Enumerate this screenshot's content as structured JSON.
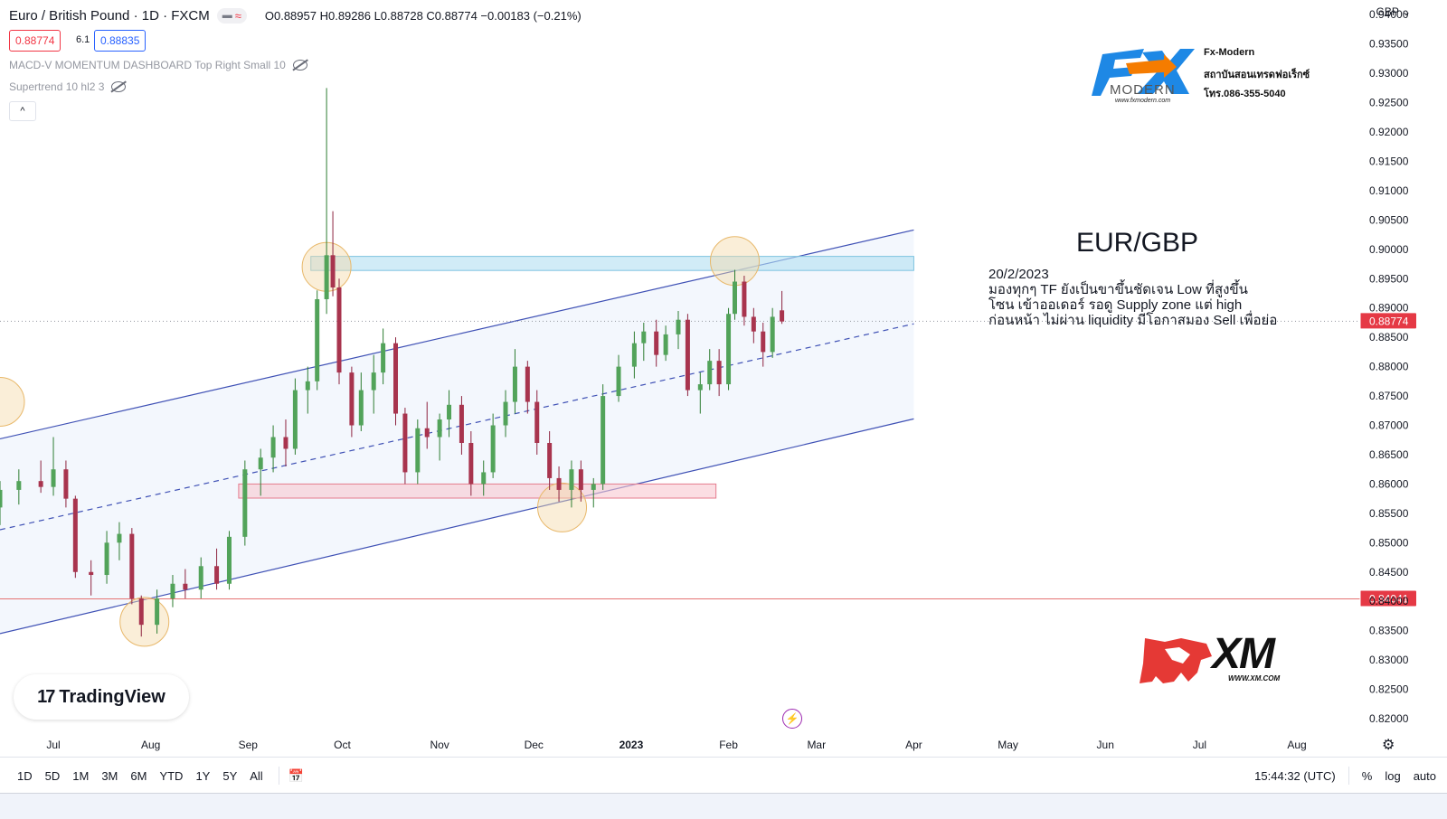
{
  "header": {
    "symbol": "Euro / British Pound · 1D · FXCM",
    "pill_wave": "≈",
    "ohlc": "O0.88957 H0.89286 L0.88728 C0.88774 −0.00183 (−0.21%)",
    "bid": "0.88774",
    "spread": "6.1",
    "ask": "0.88835",
    "collapse": "^"
  },
  "indicators": [
    {
      "label": "MACD-V MOMENTUM DASHBOARD Top Right Small 10"
    },
    {
      "label": "Supertrend 10 hl2 3"
    }
  ],
  "currency": "GBP ⌄",
  "annotation": {
    "title": "EUR/GBP",
    "lines": [
      "20/2/2023",
      "มองทุกๆ TF ยังเป็นขาขึ้นชัดเจน Low ที่สูงขึ้น",
      "โซน เข้าออเดอร์ รอดู Supply zone แต่ high",
      "ก่อนหน้า ไม่ผ่าน liquidity มีโอกาสมอง Sell เพื่อย่อ"
    ]
  },
  "logos": {
    "fx_name": "Fx-Modern",
    "fx_line1": "สถาบันสอนเทรดฟอเร็กซ์",
    "fx_line2": "โทร.086-355-5040",
    "fx_site": "www.fxmodern.com",
    "fx_word": "MODERN",
    "xm_text": "XM",
    "xm_site": "WWW.XM.COM",
    "tradingview": "TradingView",
    "tv_mark": "17"
  },
  "bottombar": {
    "ranges": [
      "1D",
      "5D",
      "1M",
      "3M",
      "6M",
      "YTD",
      "1Y",
      "5Y",
      "All"
    ],
    "time": "15:44:32 (UTC)",
    "percent": "%",
    "log": "log",
    "auto": "auto"
  },
  "colors": {
    "up": "#26a69a",
    "up_body": "#52a35a",
    "down": "#c2185b",
    "down_body": "#a8344e",
    "channel": "#3f51b5",
    "supply": "#b3e0f2",
    "demand": "#f8c8d0",
    "circle": "#f5d9a8",
    "price_tag": "#e53945"
  },
  "chart_data": {
    "type": "candlestick",
    "y_axis": {
      "ticks": [
        0.94,
        0.935,
        0.93,
        0.925,
        0.92,
        0.915,
        0.91,
        0.905,
        0.9,
        0.895,
        0.89,
        0.885,
        0.88,
        0.875,
        0.87,
        0.865,
        0.86,
        0.855,
        0.85,
        0.845,
        0.84,
        0.835,
        0.83,
        0.825,
        0.82
      ],
      "tick_labels": [
        "0.94000",
        "0.93500",
        "0.93000",
        "0.92500",
        "0.92000",
        "0.91500",
        "0.91000",
        "0.90500",
        "0.90000",
        "0.89500",
        "0.89000",
        "0.88500",
        "0.88000",
        "0.87500",
        "0.87000",
        "0.86500",
        "0.86000",
        "0.85500",
        "0.85000",
        "0.84500",
        "0.84000",
        "0.83500",
        "0.83000",
        "0.82500",
        "0.82000"
      ],
      "ylim": [
        0.818,
        0.9425
      ]
    },
    "x_axis": {
      "labels": [
        "Jul",
        "Aug",
        "Sep",
        "Oct",
        "Nov",
        "Dec",
        "2023",
        "Feb",
        "Mar",
        "Apr",
        "May",
        "Jun",
        "Jul",
        "Aug"
      ],
      "label_dates": [
        "2022-07-01",
        "2022-08-01",
        "2022-09-01",
        "2022-10-01",
        "2022-11-01",
        "2022-12-01",
        "2023-01-01",
        "2023-02-01",
        "2023-03-01",
        "2023-04-01",
        "2023-05-01",
        "2023-06-01",
        "2023-07-01",
        "2023-08-01"
      ],
      "bold": [
        "2023"
      ],
      "date_range": [
        "2022-06-14",
        "2023-08-20"
      ]
    },
    "price_levels": [
      {
        "price": 0.88774,
        "label": "0.88774",
        "style": "dotted"
      },
      {
        "price": 0.84041,
        "label": "0.84041",
        "style": "solid"
      }
    ],
    "zones": [
      {
        "kind": "supply",
        "from": "2022-09-21",
        "to": "2023-04-01",
        "low": 0.8964,
        "high": 0.8988
      },
      {
        "kind": "demand",
        "from": "2022-08-29",
        "to": "2023-01-28",
        "low": 0.8576,
        "high": 0.86
      }
    ],
    "channel": {
      "upper": {
        "from": [
          "2022-06-14",
          0.8677
        ],
        "to": [
          "2023-04-01",
          0.9033
        ]
      },
      "mid": {
        "from": [
          "2022-06-14",
          0.8522
        ],
        "to": [
          "2023-04-01",
          0.8873
        ]
      },
      "lower": {
        "from": [
          "2022-06-14",
          0.8345
        ],
        "to": [
          "2023-04-01",
          0.8711
        ]
      }
    },
    "highlights": [
      {
        "date": "2022-07-30",
        "price": 0.8365
      },
      {
        "date": "2022-09-26",
        "price": 0.897
      },
      {
        "date": "2022-12-10",
        "price": 0.856
      },
      {
        "date": "2023-02-03",
        "price": 0.898
      },
      {
        "date": "2022-06-14",
        "price": 0.874
      }
    ],
    "candles": [
      {
        "t": "2022-06-14",
        "o": 0.856,
        "h": 0.8605,
        "l": 0.853,
        "c": 0.859
      },
      {
        "t": "2022-06-20",
        "o": 0.859,
        "h": 0.8625,
        "l": 0.8565,
        "c": 0.8605
      },
      {
        "t": "2022-06-27",
        "o": 0.8605,
        "h": 0.864,
        "l": 0.8585,
        "c": 0.8595
      },
      {
        "t": "2022-07-01",
        "o": 0.8595,
        "h": 0.868,
        "l": 0.858,
        "c": 0.8625
      },
      {
        "t": "2022-07-05",
        "o": 0.8625,
        "h": 0.864,
        "l": 0.856,
        "c": 0.8575
      },
      {
        "t": "2022-07-08",
        "o": 0.8575,
        "h": 0.858,
        "l": 0.844,
        "c": 0.845
      },
      {
        "t": "2022-07-13",
        "o": 0.845,
        "h": 0.847,
        "l": 0.841,
        "c": 0.8445
      },
      {
        "t": "2022-07-18",
        "o": 0.8445,
        "h": 0.852,
        "l": 0.843,
        "c": 0.85
      },
      {
        "t": "2022-07-22",
        "o": 0.85,
        "h": 0.8535,
        "l": 0.847,
        "c": 0.8515
      },
      {
        "t": "2022-07-26",
        "o": 0.8515,
        "h": 0.8525,
        "l": 0.8395,
        "c": 0.8405
      },
      {
        "t": "2022-07-29",
        "o": 0.8405,
        "h": 0.841,
        "l": 0.834,
        "c": 0.836
      },
      {
        "t": "2022-08-03",
        "o": 0.836,
        "h": 0.842,
        "l": 0.8345,
        "c": 0.8405
      },
      {
        "t": "2022-08-08",
        "o": 0.8405,
        "h": 0.8445,
        "l": 0.839,
        "c": 0.843
      },
      {
        "t": "2022-08-12",
        "o": 0.843,
        "h": 0.8455,
        "l": 0.8405,
        "c": 0.842
      },
      {
        "t": "2022-08-17",
        "o": 0.842,
        "h": 0.8475,
        "l": 0.8405,
        "c": 0.846
      },
      {
        "t": "2022-08-22",
        "o": 0.846,
        "h": 0.849,
        "l": 0.842,
        "c": 0.843
      },
      {
        "t": "2022-08-26",
        "o": 0.843,
        "h": 0.852,
        "l": 0.842,
        "c": 0.851
      },
      {
        "t": "2022-08-31",
        "o": 0.851,
        "h": 0.864,
        "l": 0.8495,
        "c": 0.8625
      },
      {
        "t": "2022-09-05",
        "o": 0.8625,
        "h": 0.866,
        "l": 0.858,
        "c": 0.8645
      },
      {
        "t": "2022-09-09",
        "o": 0.8645,
        "h": 0.87,
        "l": 0.862,
        "c": 0.868
      },
      {
        "t": "2022-09-13",
        "o": 0.868,
        "h": 0.871,
        "l": 0.863,
        "c": 0.866
      },
      {
        "t": "2022-09-16",
        "o": 0.866,
        "h": 0.878,
        "l": 0.865,
        "c": 0.876
      },
      {
        "t": "2022-09-20",
        "o": 0.876,
        "h": 0.88,
        "l": 0.872,
        "c": 0.8775
      },
      {
        "t": "2022-09-23",
        "o": 0.8775,
        "h": 0.893,
        "l": 0.876,
        "c": 0.8915
      },
      {
        "t": "2022-09-26",
        "o": 0.8915,
        "h": 0.9275,
        "l": 0.889,
        "c": 0.899
      },
      {
        "t": "2022-09-28",
        "o": 0.899,
        "h": 0.9065,
        "l": 0.892,
        "c": 0.8935
      },
      {
        "t": "2022-09-30",
        "o": 0.8935,
        "h": 0.895,
        "l": 0.877,
        "c": 0.879
      },
      {
        "t": "2022-10-04",
        "o": 0.879,
        "h": 0.88,
        "l": 0.868,
        "c": 0.87
      },
      {
        "t": "2022-10-07",
        "o": 0.87,
        "h": 0.879,
        "l": 0.869,
        "c": 0.876
      },
      {
        "t": "2022-10-11",
        "o": 0.876,
        "h": 0.882,
        "l": 0.872,
        "c": 0.879
      },
      {
        "t": "2022-10-14",
        "o": 0.879,
        "h": 0.8865,
        "l": 0.877,
        "c": 0.884
      },
      {
        "t": "2022-10-18",
        "o": 0.884,
        "h": 0.885,
        "l": 0.87,
        "c": 0.872
      },
      {
        "t": "2022-10-21",
        "o": 0.872,
        "h": 0.873,
        "l": 0.86,
        "c": 0.862
      },
      {
        "t": "2022-10-25",
        "o": 0.862,
        "h": 0.871,
        "l": 0.86,
        "c": 0.8695
      },
      {
        "t": "2022-10-28",
        "o": 0.8695,
        "h": 0.874,
        "l": 0.866,
        "c": 0.868
      },
      {
        "t": "2022-11-01",
        "o": 0.868,
        "h": 0.872,
        "l": 0.864,
        "c": 0.871
      },
      {
        "t": "2022-11-04",
        "o": 0.871,
        "h": 0.876,
        "l": 0.868,
        "c": 0.8735
      },
      {
        "t": "2022-11-08",
        "o": 0.8735,
        "h": 0.875,
        "l": 0.865,
        "c": 0.867
      },
      {
        "t": "2022-11-11",
        "o": 0.867,
        "h": 0.869,
        "l": 0.858,
        "c": 0.86
      },
      {
        "t": "2022-11-15",
        "o": 0.86,
        "h": 0.864,
        "l": 0.858,
        "c": 0.862
      },
      {
        "t": "2022-11-18",
        "o": 0.862,
        "h": 0.872,
        "l": 0.861,
        "c": 0.87
      },
      {
        "t": "2022-11-22",
        "o": 0.87,
        "h": 0.876,
        "l": 0.868,
        "c": 0.874
      },
      {
        "t": "2022-11-25",
        "o": 0.874,
        "h": 0.883,
        "l": 0.872,
        "c": 0.88
      },
      {
        "t": "2022-11-29",
        "o": 0.88,
        "h": 0.881,
        "l": 0.872,
        "c": 0.874
      },
      {
        "t": "2022-12-02",
        "o": 0.874,
        "h": 0.876,
        "l": 0.865,
        "c": 0.867
      },
      {
        "t": "2022-12-06",
        "o": 0.867,
        "h": 0.869,
        "l": 0.859,
        "c": 0.861
      },
      {
        "t": "2022-12-09",
        "o": 0.861,
        "h": 0.863,
        "l": 0.857,
        "c": 0.859
      },
      {
        "t": "2022-12-13",
        "o": 0.859,
        "h": 0.864,
        "l": 0.856,
        "c": 0.8625
      },
      {
        "t": "2022-12-16",
        "o": 0.8625,
        "h": 0.864,
        "l": 0.857,
        "c": 0.859
      },
      {
        "t": "2022-12-20",
        "o": 0.859,
        "h": 0.861,
        "l": 0.856,
        "c": 0.86
      },
      {
        "t": "2022-12-23",
        "o": 0.86,
        "h": 0.877,
        "l": 0.859,
        "c": 0.875
      },
      {
        "t": "2022-12-28",
        "o": 0.875,
        "h": 0.882,
        "l": 0.874,
        "c": 0.88
      },
      {
        "t": "2023-01-02",
        "o": 0.88,
        "h": 0.886,
        "l": 0.878,
        "c": 0.884
      },
      {
        "t": "2023-01-05",
        "o": 0.884,
        "h": 0.8875,
        "l": 0.881,
        "c": 0.886
      },
      {
        "t": "2023-01-09",
        "o": 0.886,
        "h": 0.888,
        "l": 0.88,
        "c": 0.882
      },
      {
        "t": "2023-01-12",
        "o": 0.882,
        "h": 0.887,
        "l": 0.881,
        "c": 0.8855
      },
      {
        "t": "2023-01-16",
        "o": 0.8855,
        "h": 0.8895,
        "l": 0.883,
        "c": 0.888
      },
      {
        "t": "2023-01-19",
        "o": 0.888,
        "h": 0.889,
        "l": 0.875,
        "c": 0.876
      },
      {
        "t": "2023-01-23",
        "o": 0.876,
        "h": 0.879,
        "l": 0.872,
        "c": 0.877
      },
      {
        "t": "2023-01-26",
        "o": 0.877,
        "h": 0.883,
        "l": 0.876,
        "c": 0.881
      },
      {
        "t": "2023-01-29",
        "o": 0.881,
        "h": 0.883,
        "l": 0.875,
        "c": 0.877
      },
      {
        "t": "2023-02-01",
        "o": 0.877,
        "h": 0.89,
        "l": 0.876,
        "c": 0.889
      },
      {
        "t": "2023-02-03",
        "o": 0.889,
        "h": 0.8965,
        "l": 0.888,
        "c": 0.8945
      },
      {
        "t": "2023-02-06",
        "o": 0.8945,
        "h": 0.8955,
        "l": 0.887,
        "c": 0.8885
      },
      {
        "t": "2023-02-09",
        "o": 0.8885,
        "h": 0.89,
        "l": 0.884,
        "c": 0.886
      },
      {
        "t": "2023-02-12",
        "o": 0.886,
        "h": 0.8875,
        "l": 0.88,
        "c": 0.8825
      },
      {
        "t": "2023-02-15",
        "o": 0.8825,
        "h": 0.89,
        "l": 0.8815,
        "c": 0.8885
      },
      {
        "t": "2023-02-18",
        "o": 0.8896,
        "h": 0.8929,
        "l": 0.8873,
        "c": 0.8877
      }
    ]
  }
}
